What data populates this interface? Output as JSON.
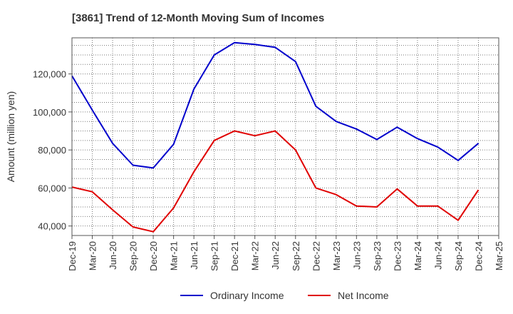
{
  "chart_data": {
    "type": "line",
    "title": "[3861]  Trend of 12-Month Moving Sum of Incomes",
    "xlabel": "",
    "ylabel": "Amount (million yen)",
    "ylim": [
      35000,
      139000
    ],
    "yticks": [
      40000,
      60000,
      80000,
      100000,
      120000
    ],
    "ytick_labels": [
      "40,000",
      "60,000",
      "80,000",
      "100,000",
      "120,000"
    ],
    "categories": [
      "Dec-19",
      "Mar-20",
      "Jun-20",
      "Sep-20",
      "Dec-20",
      "Mar-21",
      "Jun-21",
      "Sep-21",
      "Dec-21",
      "Mar-22",
      "Jun-22",
      "Sep-22",
      "Dec-22",
      "Mar-23",
      "Jun-23",
      "Sep-23",
      "Dec-23",
      "Mar-24",
      "Jun-24",
      "Sep-24",
      "Dec-24",
      "Mar-25"
    ],
    "grid": true,
    "legend_position": "bottom-center",
    "series": [
      {
        "name": "Ordinary Income",
        "color": "#0000cc",
        "values": [
          119000,
          101000,
          83500,
          72000,
          70500,
          83000,
          112000,
          130000,
          136500,
          135500,
          134000,
          126500,
          103000,
          95000,
          91000,
          85500,
          92000,
          86000,
          81500,
          74500,
          83500,
          null
        ]
      },
      {
        "name": "Net Income",
        "color": "#e00000",
        "values": [
          60500,
          58000,
          48500,
          39500,
          37000,
          49500,
          68500,
          85000,
          90000,
          87500,
          90000,
          80000,
          60000,
          56500,
          50500,
          50000,
          59500,
          50500,
          50500,
          43000,
          59000,
          null
        ]
      }
    ]
  }
}
